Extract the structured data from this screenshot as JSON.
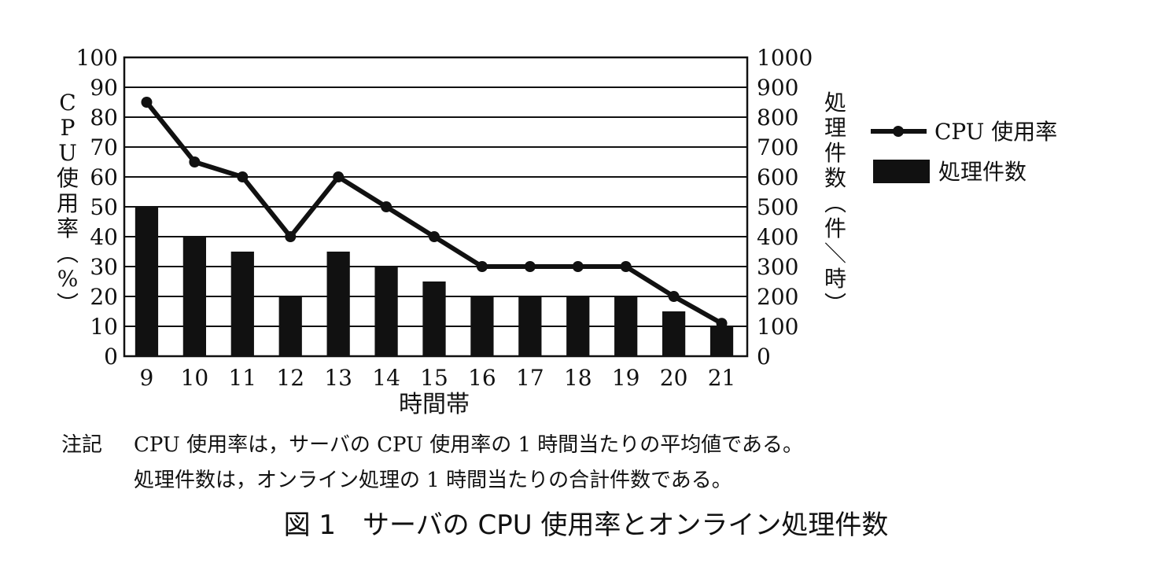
{
  "chart_data": {
    "type": "bar+line",
    "categories": [
      "9",
      "10",
      "11",
      "12",
      "13",
      "14",
      "15",
      "16",
      "17",
      "18",
      "19",
      "20",
      "21"
    ],
    "series": [
      {
        "name": "CPU 使用率",
        "type": "line",
        "axis": "left",
        "values": [
          85,
          65,
          60,
          40,
          60,
          50,
          40,
          30,
          30,
          30,
          30,
          20,
          11
        ]
      },
      {
        "name": "処理件数",
        "type": "bar",
        "axis": "right",
        "values": [
          500,
          400,
          350,
          200,
          350,
          300,
          250,
          200,
          200,
          200,
          200,
          150,
          100
        ]
      }
    ],
    "xlabel": "時間帯",
    "ylabel_left": "CPU使用率（%）",
    "ylabel_right": "処理件数（件／時）",
    "ylim_left": [
      0,
      100
    ],
    "ylim_right": [
      0,
      1000
    ],
    "yticks_left": [
      "0",
      "10",
      "20",
      "30",
      "40",
      "50",
      "60",
      "70",
      "80",
      "90",
      "100"
    ],
    "yticks_right": [
      "0",
      "100",
      "200",
      "300",
      "400",
      "500",
      "600",
      "700",
      "800",
      "900",
      "1000"
    ],
    "grid": true,
    "legend_position": "right",
    "colors": {
      "line": "#111111",
      "bar": "#111111",
      "grid": "#111111"
    }
  },
  "notes": {
    "label": "注記",
    "line1": "CPU 使用率は，サーバの CPU 使用率の 1 時間当たりの平均値である。",
    "line2": "処理件数は，オンライン処理の 1 時間当たりの合計件数である。"
  },
  "caption": "図 1　サーバの CPU 使用率とオンライン処理件数"
}
